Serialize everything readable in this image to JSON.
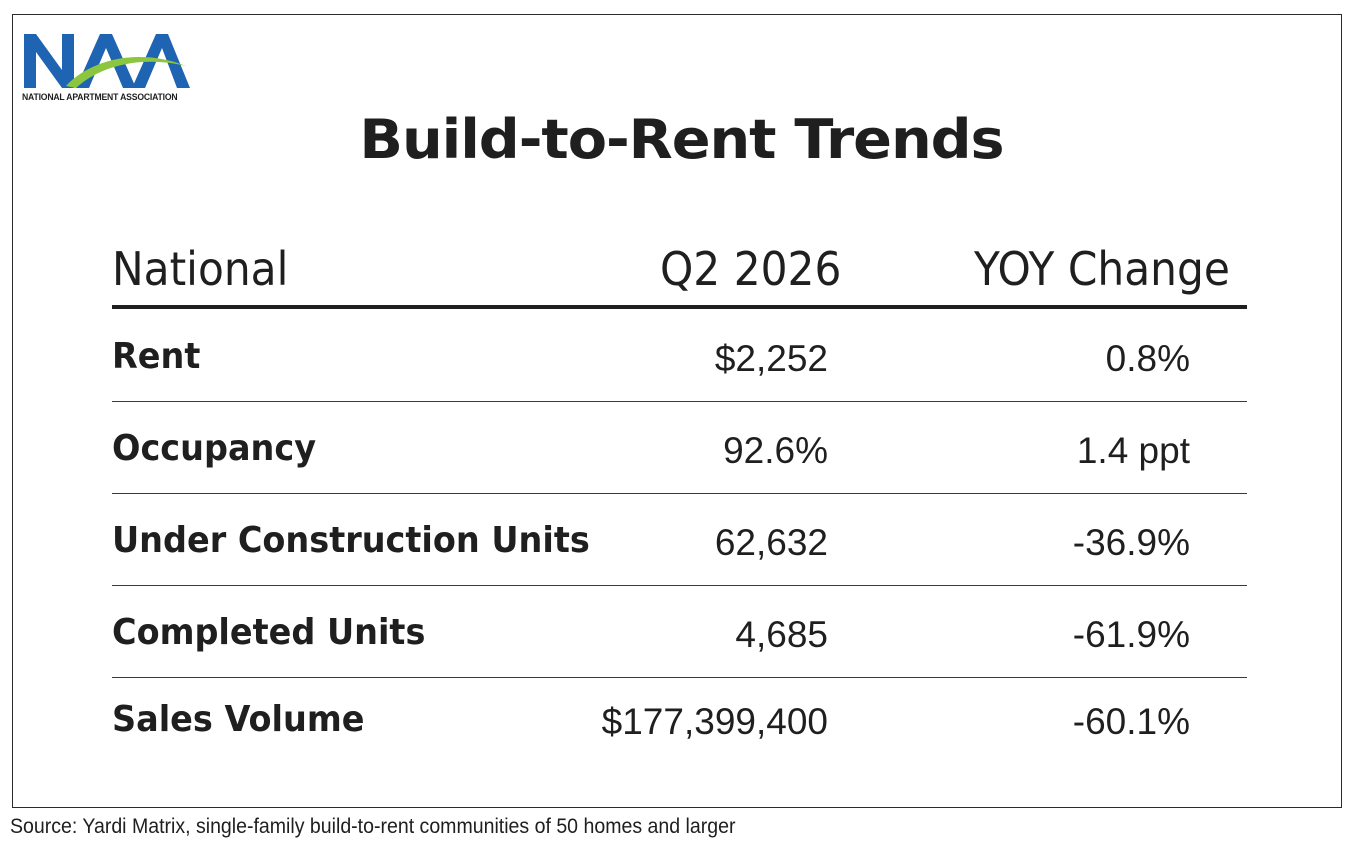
{
  "logo": {
    "mark": "NAA",
    "name": "NATIONAL APARTMENT ASSOCIATION",
    "colors": {
      "blue": "#1f63b3",
      "green": "#8cc63f"
    }
  },
  "title": "Build-to-Rent Trends",
  "table": {
    "headers": {
      "label": "National",
      "value": "Q2 2026",
      "change": "YOY Change"
    },
    "rows": [
      {
        "label": "Rent",
        "value": "$2,252",
        "change": "0.8%"
      },
      {
        "label": "Occupancy",
        "value": "92.6%",
        "change": "1.4 ppt"
      },
      {
        "label": "Under Construction Units",
        "value": "62,632",
        "change": "-36.9%"
      },
      {
        "label": "Completed Units",
        "value": "4,685",
        "change": "-61.9%"
      },
      {
        "label": "Sales Volume",
        "value": "$177,399,400",
        "change": "-60.1%"
      }
    ]
  },
  "source": "Source: Yardi Matrix, single-family build-to-rent communities of 50 homes and larger"
}
